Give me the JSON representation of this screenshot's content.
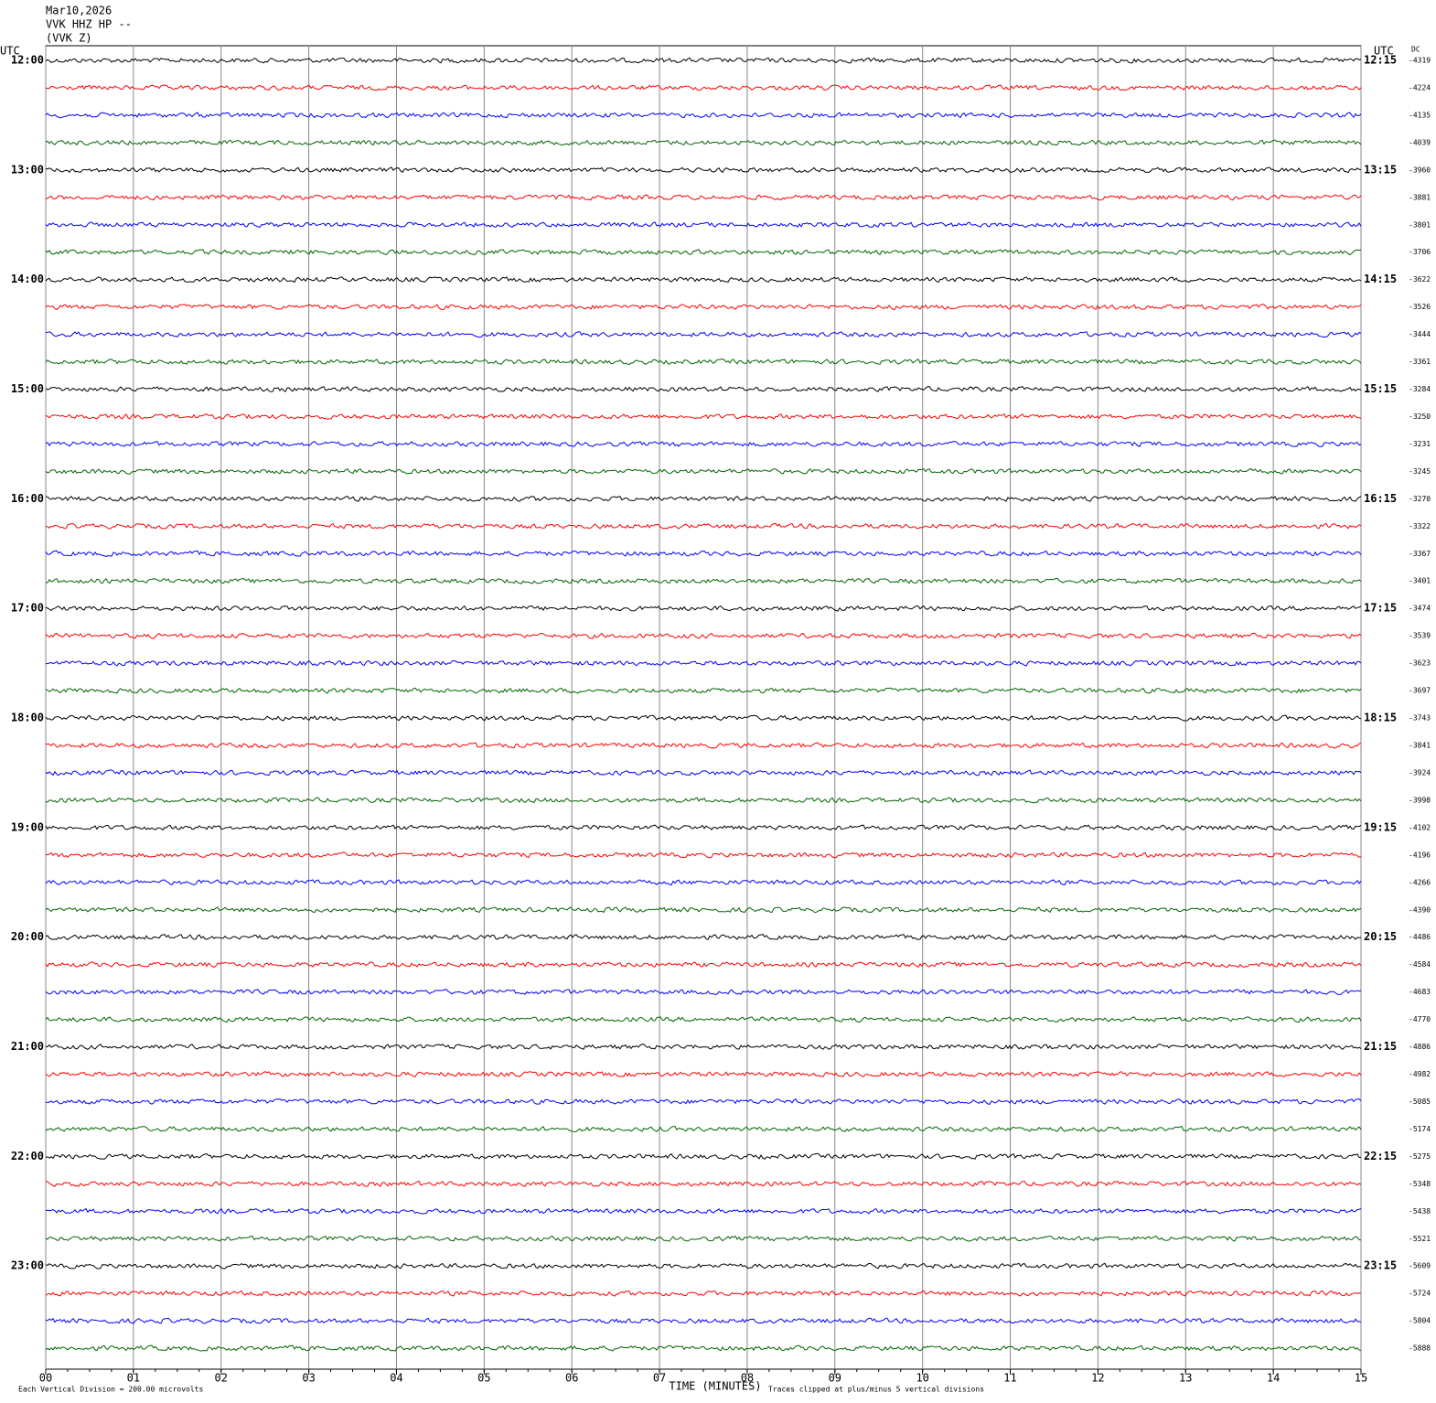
{
  "header": {
    "date": "Mar10,2026",
    "station": "VVK HHZ HP --",
    "channel": "(VVK Z)"
  },
  "left_utc": "UTC",
  "right_utc": "UTC",
  "dc_label": "DC",
  "left_labels": [
    "12:00",
    "13:00",
    "14:00",
    "15:00",
    "16:00",
    "17:00",
    "18:00",
    "19:00",
    "20:00",
    "21:00",
    "22:00",
    "23:00"
  ],
  "right_labels": [
    "12:15",
    "13:15",
    "14:15",
    "15:15",
    "16:15",
    "17:15",
    "18:15",
    "19:15",
    "20:15",
    "21:15",
    "22:15",
    "23:15"
  ],
  "dc_values": [
    -4319,
    -4224,
    -4135,
    -4039,
    -3960,
    -3881,
    -3801,
    -3706,
    -3622,
    -3526,
    -3444,
    -3361,
    -3284,
    -3250,
    -3231,
    -3245,
    -3270,
    -3322,
    -3367,
    -3401,
    -3474,
    -3539,
    -3623,
    -3697,
    -3743,
    -3841,
    -3924,
    -3998,
    -4102,
    -4196,
    -4266,
    -4390,
    -4486,
    -4584,
    -4683,
    -4770,
    -4886,
    -4982,
    -5085,
    -5174,
    -5275,
    -5348,
    -5438,
    -5521,
    -5609,
    -5724,
    -5804,
    -5888
  ],
  "trace_colors": [
    "#000000",
    "#ff0000",
    "#0000ff",
    "#006400"
  ],
  "x_axis": {
    "xlim": [
      0,
      15
    ],
    "label": "TIME (MINUTES)",
    "ticks": [
      {
        "value": 0,
        "label": "00"
      },
      {
        "value": 1,
        "label": "01"
      },
      {
        "value": 2,
        "label": "02"
      },
      {
        "value": 3,
        "label": "03"
      },
      {
        "value": 4,
        "label": "04"
      },
      {
        "value": 5,
        "label": "05"
      },
      {
        "value": 6,
        "label": "06"
      },
      {
        "value": 7,
        "label": "07"
      },
      {
        "value": 8,
        "label": "08"
      },
      {
        "value": 9,
        "label": "09"
      },
      {
        "value": 10,
        "label": "10"
      },
      {
        "value": 11,
        "label": "11"
      },
      {
        "value": 12,
        "label": "12"
      },
      {
        "value": 13,
        "label": "13"
      },
      {
        "value": 14,
        "label": "14"
      },
      {
        "value": 15,
        "label": "15"
      }
    ]
  },
  "footer": {
    "scale": "Each Vertical Division =  200.00 microvolts",
    "clip": "Traces clipped at plus/minus 5 vertical divisions"
  }
}
